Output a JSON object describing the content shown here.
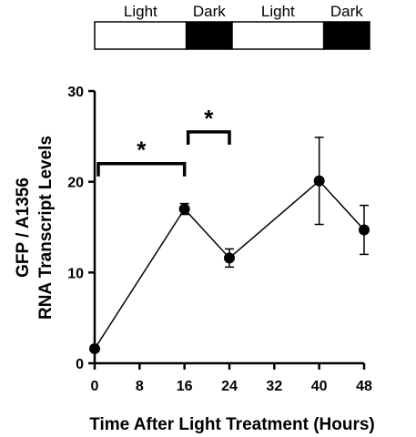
{
  "chart_data": {
    "type": "line",
    "title": "",
    "xlabel": "Time After Light Treatment (Hours)",
    "ylabel_lines": [
      "GFP / A1356",
      "RNA Transcript Levels"
    ],
    "x_ticks": [
      0,
      8,
      16,
      24,
      32,
      40,
      48
    ],
    "x_tick_labels": [
      "0",
      "8",
      "16",
      "24",
      "32",
      "40",
      "48"
    ],
    "xlim": [
      0,
      48
    ],
    "y_ticks": [
      0,
      10,
      20,
      30
    ],
    "y_tick_labels": [
      "0",
      "10",
      "20",
      "30"
    ],
    "ylim": [
      0,
      30
    ],
    "grid": false,
    "series": [
      {
        "x": [
          0,
          16,
          24,
          40,
          48
        ],
        "y": [
          1.6,
          17.0,
          11.6,
          20.1,
          14.7
        ],
        "error": [
          0.3,
          0.6,
          1.0,
          4.8,
          2.7
        ]
      }
    ],
    "light_dark_bar": [
      {
        "label": "Light",
        "phase": "light",
        "start": 0,
        "end": 16
      },
      {
        "label": "Dark",
        "phase": "dark",
        "start": 16,
        "end": 24
      },
      {
        "label": "Light",
        "phase": "light",
        "start": 24,
        "end": 40
      },
      {
        "label": "Dark",
        "phase": "dark",
        "start": 40,
        "end": 48
      }
    ],
    "significance": [
      {
        "x_start": 0,
        "x_end": 16,
        "y": 22,
        "label": "*"
      },
      {
        "x_start": 16,
        "x_end": 24,
        "y": 25.5,
        "label": "*"
      }
    ],
    "colors": {
      "line": "#000000",
      "marker": "#000000",
      "light": "#ffffff",
      "dark": "#000000"
    }
  }
}
